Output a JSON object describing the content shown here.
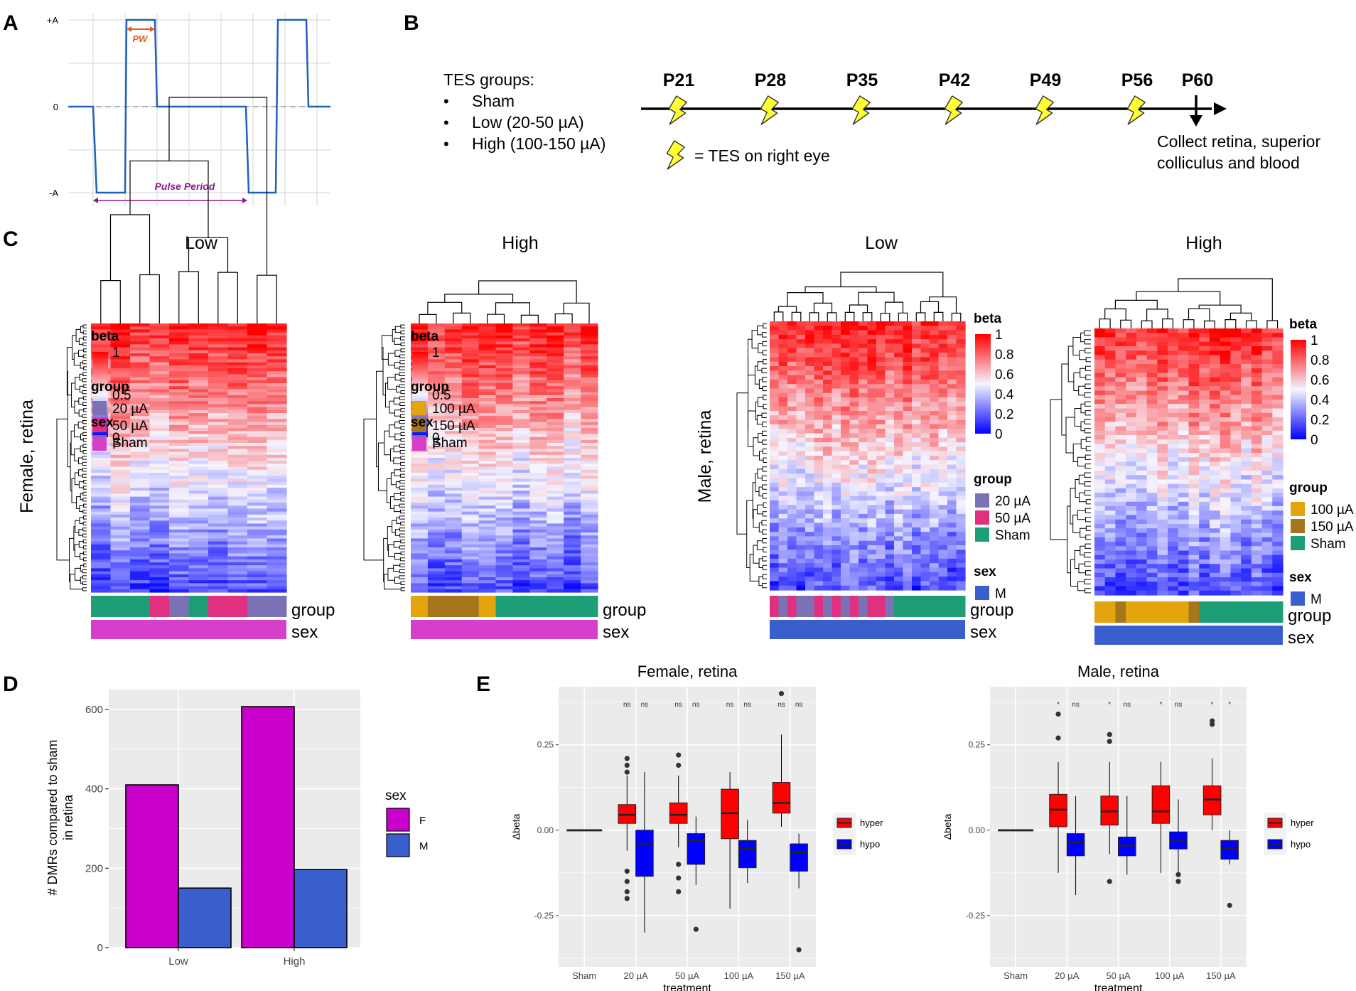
{
  "panel_letters": {
    "a": "A",
    "b": "B",
    "c": "C",
    "d": "D",
    "e": "E"
  },
  "panel_a": {
    "ylabels": [
      "+A",
      "0",
      "-A"
    ],
    "pw_label": "PW",
    "period_label": "Pulse Period"
  },
  "panel_b": {
    "groups_title": "TES groups:",
    "groups": [
      "Sham",
      "Low (20-50 µA)",
      "High (100-150 µA)"
    ],
    "bullet": "•",
    "timepoints": [
      "P21",
      "P28",
      "P35",
      "P42",
      "P49",
      "P56",
      "P60"
    ],
    "legend": "= TES on right eye",
    "collect_line1": "Collect retina, superior",
    "collect_line2": "colliculus and blood"
  },
  "panel_c": {
    "row_label_female": "Female, retina",
    "row_label_male": "Male, retina",
    "annot_group": "group",
    "annot_sex": "sex",
    "heatmaps": [
      {
        "title": "Low",
        "beta_title": "beta",
        "beta_ticks": [
          "1",
          "0.5",
          "0"
        ],
        "group_title": "group",
        "groups": [
          {
            "label": "20 µA",
            "color": "#7b72b5"
          },
          {
            "label": "50 µA",
            "color": "#e0307f"
          },
          {
            "label": "Sham",
            "color": "#1e9e77"
          }
        ],
        "sex_title": "sex",
        "sexes": [
          {
            "label": "F",
            "color": "#d63fcc"
          }
        ],
        "group_bar": [
          2,
          2,
          2,
          1,
          0,
          2,
          1,
          1,
          0,
          0
        ],
        "sex_color": "#d63fcc"
      },
      {
        "title": "High",
        "beta_title": "beta",
        "beta_ticks": [
          "1",
          "0.5",
          "0"
        ],
        "group_title": "group",
        "groups": [
          {
            "label": "100 µA",
            "color": "#e3a40e"
          },
          {
            "label": "150 µA",
            "color": "#a6761d"
          },
          {
            "label": "Sham",
            "color": "#1e9e77"
          }
        ],
        "sex_title": "sex",
        "sexes": [
          {
            "label": "F",
            "color": "#d63fcc"
          }
        ],
        "group_bar": [
          0,
          1,
          1,
          1,
          0,
          2,
          2,
          2,
          2,
          2,
          2
        ],
        "sex_color": "#d63fcc"
      },
      {
        "title": "Low",
        "beta_title": "beta",
        "beta_ticks": [
          "1",
          "0.8",
          "0.6",
          "0.4",
          "0.2",
          "0"
        ],
        "group_title": "group",
        "groups": [
          {
            "label": "20 µA",
            "color": "#7b72b5"
          },
          {
            "label": "50 µA",
            "color": "#e0307f"
          },
          {
            "label": "Sham",
            "color": "#1e9e77"
          }
        ],
        "sex_title": "sex",
        "sexes": [
          {
            "label": "M",
            "color": "#3a5fcd"
          }
        ],
        "group_bar": [
          1,
          0,
          1,
          0,
          0,
          1,
          0,
          1,
          0,
          1,
          0,
          1,
          1,
          0,
          2,
          2,
          2,
          2,
          2,
          2,
          2,
          2
        ],
        "sex_color": "#3a5fcd"
      },
      {
        "title": "High",
        "beta_title": "beta",
        "beta_ticks": [
          "1",
          "0.8",
          "0.6",
          "0.4",
          "0.2",
          "0"
        ],
        "group_title": "group",
        "groups": [
          {
            "label": "100 µA",
            "color": "#e3a40e"
          },
          {
            "label": "150 µA",
            "color": "#a6761d"
          },
          {
            "label": "Sham",
            "color": "#1e9e77"
          }
        ],
        "sex_title": "sex",
        "sexes": [
          {
            "label": "M",
            "color": "#3a5fcd"
          }
        ],
        "group_bar": [
          0,
          0,
          1,
          0,
          0,
          0,
          0,
          0,
          0,
          1,
          2,
          2,
          2,
          2,
          2,
          2,
          2,
          2
        ],
        "sex_color": "#3a5fcd"
      }
    ]
  },
  "colors": {
    "female": "#cc00cc",
    "male": "#3a5fcd",
    "hyper": "#ff0000",
    "hypo": "#0000ff",
    "panel_bg": "#ebebeb",
    "wave": "#1f5fbf",
    "pw": "#e06020",
    "period": "#8b1a8b",
    "bolt": "#ffff33"
  },
  "chart_data": [
    {
      "type": "bar",
      "ylabel": "# DMRs compared to sham in retina",
      "xlabel": "",
      "categories": [
        "Low",
        "High"
      ],
      "ylim": [
        0,
        650
      ],
      "yticks": [
        0,
        200,
        400,
        600
      ],
      "legend_title": "sex",
      "series": [
        {
          "name": "F",
          "values": [
            410,
            607
          ]
        },
        {
          "name": "M",
          "values": [
            150,
            197
          ]
        }
      ]
    },
    {
      "type": "box",
      "title": "Female, retina",
      "xlabel": "treatment",
      "ylabel": "Δbeta",
      "ylim": [
        -0.4,
        0.42
      ],
      "yticks": [
        -0.25,
        0.0,
        0.25
      ],
      "ytick_labels": [
        "-0.25",
        "0.00",
        "0.25"
      ],
      "categories": [
        "Sham",
        "20 µA",
        "50 µA",
        "100 µA",
        "150 µA"
      ],
      "legend": [
        "hyper",
        "hypo"
      ],
      "significance": [
        "ns",
        "ns",
        "ns",
        "ns",
        "ns",
        "ns",
        "ns",
        "ns"
      ],
      "hyper": [
        {
          "q1": 0,
          "median": 0,
          "q3": 0,
          "lo": 0,
          "hi": 0
        },
        {
          "q1": 0.02,
          "median": 0.045,
          "q3": 0.075,
          "lo": -0.06,
          "hi": 0.16,
          "outliers": [
            0.21,
            0.19,
            0.17,
            -0.12,
            -0.15,
            -0.18,
            -0.2
          ]
        },
        {
          "q1": 0.02,
          "median": 0.045,
          "q3": 0.08,
          "lo": -0.05,
          "hi": 0.16,
          "outliers": [
            0.22,
            0.19,
            -0.1,
            -0.14,
            -0.18
          ]
        },
        {
          "q1": -0.025,
          "median": 0.05,
          "q3": 0.12,
          "lo": -0.23,
          "hi": 0.17
        },
        {
          "q1": 0.05,
          "median": 0.08,
          "q3": 0.14,
          "lo": 0.01,
          "hi": 0.28,
          "outliers": [
            0.4
          ]
        }
      ],
      "hypo": [
        {
          "q1": 0,
          "median": 0,
          "q3": 0,
          "lo": 0,
          "hi": 0
        },
        {
          "q1": -0.135,
          "median": -0.04,
          "q3": 0,
          "lo": -0.3,
          "hi": 0.17
        },
        {
          "q1": -0.1,
          "median": -0.03,
          "q3": -0.01,
          "lo": -0.16,
          "hi": 0.04,
          "outliers": [
            -0.29
          ]
        },
        {
          "q1": -0.11,
          "median": -0.055,
          "q3": -0.03,
          "lo": -0.155,
          "hi": 0.03
        },
        {
          "q1": -0.12,
          "median": -0.065,
          "q3": -0.04,
          "lo": -0.17,
          "hi": -0.01,
          "outliers": [
            -0.35
          ]
        }
      ]
    },
    {
      "type": "box",
      "title": "Male, retina",
      "xlabel": "treatment",
      "ylabel": "Δbeta",
      "ylim": [
        -0.4,
        0.42
      ],
      "yticks": [
        -0.25,
        0.0,
        0.25
      ],
      "ytick_labels": [
        "-0.25",
        "0.00",
        "0.25"
      ],
      "categories": [
        "Sham",
        "20 µA",
        "50 µA",
        "100 µA",
        "150 µA"
      ],
      "legend": [
        "hyper",
        "hypo"
      ],
      "significance": [
        "*",
        "ns",
        "*",
        "ns",
        "*",
        "ns",
        "*",
        "*"
      ],
      "hyper": [
        {
          "q1": 0,
          "median": 0,
          "q3": 0,
          "lo": 0,
          "hi": 0
        },
        {
          "q1": 0.01,
          "median": 0.06,
          "q3": 0.105,
          "lo": -0.125,
          "hi": 0.2,
          "outliers": [
            0.34,
            0.27
          ]
        },
        {
          "q1": 0.015,
          "median": 0.055,
          "q3": 0.1,
          "lo": -0.07,
          "hi": 0.2,
          "outliers": [
            0.28,
            0.26,
            -0.15
          ]
        },
        {
          "q1": 0.02,
          "median": 0.055,
          "q3": 0.13,
          "lo": -0.125,
          "hi": 0.2
        },
        {
          "q1": 0.045,
          "median": 0.09,
          "q3": 0.13,
          "lo": 0.0,
          "hi": 0.21,
          "outliers": [
            0.32,
            0.31
          ]
        }
      ],
      "hypo": [
        {
          "q1": 0,
          "median": 0,
          "q3": 0,
          "lo": 0,
          "hi": 0
        },
        {
          "q1": -0.075,
          "median": -0.035,
          "q3": -0.01,
          "lo": -0.19,
          "hi": 0.1
        },
        {
          "q1": -0.075,
          "median": -0.045,
          "q3": -0.02,
          "lo": -0.13,
          "hi": 0.1
        },
        {
          "q1": -0.055,
          "median": -0.03,
          "q3": -0.005,
          "lo": -0.125,
          "hi": 0.09,
          "outliers": [
            -0.13,
            -0.15
          ]
        },
        {
          "q1": -0.085,
          "median": -0.055,
          "q3": -0.03,
          "lo": -0.1,
          "hi": 0.0,
          "outliers": [
            -0.22
          ]
        }
      ]
    }
  ]
}
